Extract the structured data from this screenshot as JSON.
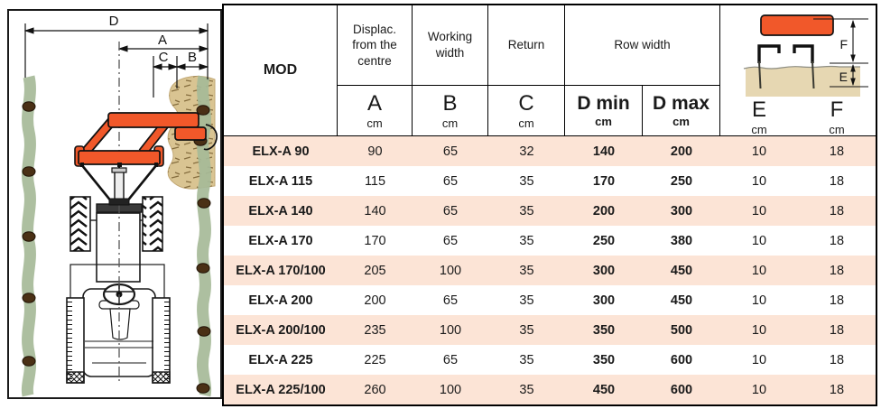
{
  "diagram": {
    "labels": {
      "d": "D",
      "a": "A",
      "c": "C",
      "b": "B"
    }
  },
  "table": {
    "header": {
      "mod": "MOD",
      "col_a": {
        "title": "Displac. from the centre",
        "letter": "A",
        "unit": "cm"
      },
      "col_b": {
        "title": "Working width",
        "letter": "B",
        "unit": "cm"
      },
      "col_c": {
        "title": "Return",
        "letter": "C",
        "unit": "cm"
      },
      "row_width": {
        "title": "Row width",
        "d_min": "D min",
        "d_max": "D max",
        "unit": "cm"
      },
      "col_e": {
        "letter": "E",
        "unit": "cm"
      },
      "col_f": {
        "letter": "F",
        "unit": "cm"
      },
      "ef_diagram": {
        "e": "E",
        "f": "F"
      }
    },
    "rows": [
      {
        "mod": "ELX-A 90",
        "a": "90",
        "b": "65",
        "c": "32",
        "d_min": "140",
        "d_max": "200",
        "e": "10",
        "f": "18"
      },
      {
        "mod": "ELX-A 115",
        "a": "115",
        "b": "65",
        "c": "35",
        "d_min": "170",
        "d_max": "250",
        "e": "10",
        "f": "18"
      },
      {
        "mod": "ELX-A 140",
        "a": "140",
        "b": "65",
        "c": "35",
        "d_min": "200",
        "d_max": "300",
        "e": "10",
        "f": "18"
      },
      {
        "mod": "ELX-A 170",
        "a": "170",
        "b": "65",
        "c": "35",
        "d_min": "250",
        "d_max": "380",
        "e": "10",
        "f": "18"
      },
      {
        "mod": "ELX-A 170/100",
        "a": "205",
        "b": "100",
        "c": "35",
        "d_min": "300",
        "d_max": "450",
        "e": "10",
        "f": "18"
      },
      {
        "mod": "ELX-A 200",
        "a": "200",
        "b": "65",
        "c": "35",
        "d_min": "300",
        "d_max": "450",
        "e": "10",
        "f": "18"
      },
      {
        "mod": "ELX-A 200/100",
        "a": "235",
        "b": "100",
        "c": "35",
        "d_min": "350",
        "d_max": "500",
        "e": "10",
        "f": "18"
      },
      {
        "mod": "ELX-A 225",
        "a": "225",
        "b": "65",
        "c": "35",
        "d_min": "350",
        "d_max": "600",
        "e": "10",
        "f": "18"
      },
      {
        "mod": "ELX-A 225/100",
        "a": "260",
        "b": "100",
        "c": "35",
        "d_min": "450",
        "d_max": "600",
        "e": "10",
        "f": "18"
      }
    ]
  },
  "colors": {
    "implement_orange": "#F1582A",
    "row_highlight_pink": "#FCE4D6",
    "crop_row_green": "#A6BA98",
    "soil_tan": "#D9C492",
    "ef_soil_tan": "#E6D7B2",
    "plant_brown": "#4A3015",
    "line_black": "#1a1a1a"
  }
}
